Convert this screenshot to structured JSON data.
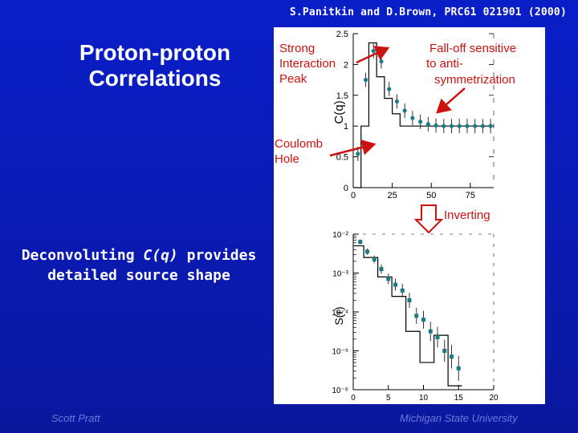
{
  "slide": {
    "citation": "S.Panitkin and D.Brown, PRC61 021901 (2000)",
    "title_line1": "Proton-proton",
    "title_line2": "Correlations",
    "body_prefix": "Deconvoluting ",
    "body_italic": "C(q)",
    "body_suffix": " provides",
    "body_line2": "detailed source shape",
    "footer_left": "Scott Pratt",
    "footer_right": "Michigan State University"
  },
  "annotations": {
    "strong_peak_line1": "Strong",
    "strong_peak_line2": "Interaction",
    "strong_peak_line3": "Peak",
    "falloff_line1": "Fall-off sensitive",
    "falloff_line2": "to anti-",
    "falloff_line3": "symmetrization",
    "coulomb_line1": "Coulomb",
    "coulomb_line2": "Hole",
    "inverting": "Inverting"
  },
  "colors": {
    "background": "#0a1ec8",
    "annotation": "#cc1111",
    "points": "#1a7a86"
  },
  "chart_data": [
    {
      "type": "scatter",
      "title": "",
      "ylabel": "C(q)",
      "xlabel": "",
      "xlim": [
        0,
        90
      ],
      "ylim": [
        0,
        2.5
      ],
      "x_ticks": [
        "0",
        "25",
        "50",
        "75"
      ],
      "y_ticks": [
        "0",
        "0.5",
        "1",
        "1.5",
        "2",
        "2.5"
      ],
      "points": [
        {
          "x": 3,
          "y": 0.55
        },
        {
          "x": 8,
          "y": 1.75
        },
        {
          "x": 13,
          "y": 2.22
        },
        {
          "x": 18,
          "y": 2.05
        },
        {
          "x": 23,
          "y": 1.6
        },
        {
          "x": 28,
          "y": 1.4
        },
        {
          "x": 33,
          "y": 1.25
        },
        {
          "x": 38,
          "y": 1.13
        },
        {
          "x": 43,
          "y": 1.07
        },
        {
          "x": 48,
          "y": 1.03
        },
        {
          "x": 53,
          "y": 1.01
        },
        {
          "x": 58,
          "y": 1.0
        },
        {
          "x": 63,
          "y": 1.0
        },
        {
          "x": 68,
          "y": 1.0
        },
        {
          "x": 73,
          "y": 1.0
        },
        {
          "x": 78,
          "y": 1.0
        },
        {
          "x": 83,
          "y": 1.0
        },
        {
          "x": 88,
          "y": 1.0
        }
      ],
      "histogram": {
        "edges": [
          0,
          5,
          10,
          15,
          20,
          25,
          30
        ],
        "values": [
          0,
          1.0,
          2.35,
          1.8,
          1.45,
          1.2
        ]
      }
    },
    {
      "type": "scatter",
      "title": "",
      "ylabel": "S(r)",
      "xlabel": "",
      "yscale": "log",
      "xlim": [
        0,
        20
      ],
      "ylim_exponent": [
        -6,
        -2
      ],
      "x_ticks": [
        "0",
        "5",
        "10",
        "15",
        "20"
      ],
      "y_ticks": [
        "10⁻²",
        "10⁻³",
        "10⁻⁴",
        "10⁻⁵",
        "10⁻⁶"
      ],
      "points": [
        {
          "x": 1,
          "log10_y": -2.2
        },
        {
          "x": 2,
          "log10_y": -2.45
        },
        {
          "x": 3,
          "log10_y": -2.65
        },
        {
          "x": 4,
          "log10_y": -2.9
        },
        {
          "x": 5,
          "log10_y": -3.15
        },
        {
          "x": 6,
          "log10_y": -3.3
        },
        {
          "x": 7,
          "log10_y": -3.45
        },
        {
          "x": 8,
          "log10_y": -3.7
        },
        {
          "x": 9,
          "log10_y": -4.1
        },
        {
          "x": 10,
          "log10_y": -4.2
        },
        {
          "x": 11,
          "log10_y": -4.5
        },
        {
          "x": 12,
          "log10_y": -4.65
        },
        {
          "x": 13,
          "log10_y": -5.0
        },
        {
          "x": 14,
          "log10_y": -5.15
        },
        {
          "x": 15,
          "log10_y": -5.45
        }
      ],
      "histogram": {
        "edges": [
          0,
          1.5,
          3.5,
          5.5,
          7.5,
          9.5,
          11.5,
          13.5,
          15.5
        ],
        "log10_values": [
          -2.3,
          -2.6,
          -3.1,
          -3.6,
          -4.5,
          -5.3,
          -4.6,
          -5.9
        ]
      }
    }
  ]
}
